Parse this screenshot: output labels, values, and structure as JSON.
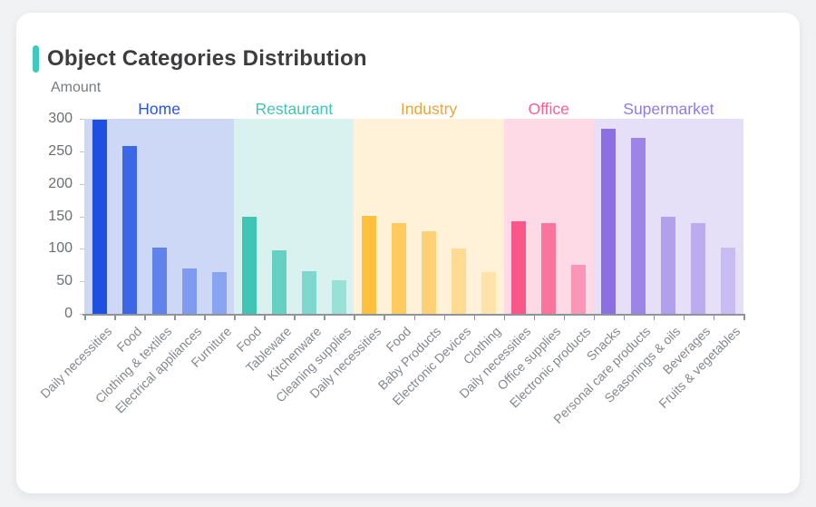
{
  "page": {
    "background": "#f0f2f4"
  },
  "card": {
    "title": "Object Categories Distribution",
    "accent_color": "#3ec9bd"
  },
  "chart_data": {
    "type": "bar",
    "title": "Object Categories Distribution",
    "xlabel": "",
    "ylabel": "Amount",
    "ylim": [
      0,
      300
    ],
    "yticks": [
      0,
      50,
      100,
      150,
      200,
      250,
      300
    ],
    "grid": false,
    "legend_position": "group-headers-top",
    "groups": [
      {
        "name": "Home",
        "label_color": "#2b53e3",
        "panel_color": "#cdd8f6",
        "bars": [
          {
            "label": "Daily necessities",
            "value": 299,
            "color": "#1e4fe0"
          },
          {
            "label": "Food",
            "value": 258,
            "color": "#3b66e6"
          },
          {
            "label": "Clothing & textiles",
            "value": 102,
            "color": "#5f83eb"
          },
          {
            "label": "Electrical appliances",
            "value": 70,
            "color": "#7e9bf0"
          },
          {
            "label": "Furniture",
            "value": 64,
            "color": "#8aa4f1"
          }
        ]
      },
      {
        "name": "Restaurant",
        "label_color": "#3fc5b5",
        "panel_color": "#d9f2ef",
        "bars": [
          {
            "label": "Food",
            "value": 149,
            "color": "#40c4b4"
          },
          {
            "label": "Tableware",
            "value": 97,
            "color": "#66d0c3"
          },
          {
            "label": "Kitchenware",
            "value": 66,
            "color": "#7fd8cd"
          },
          {
            "label": "Cleaning supplies",
            "value": 52,
            "color": "#99e0d7"
          }
        ]
      },
      {
        "name": "Industry",
        "label_color": "#eaa63c",
        "panel_color": "#fff2d8",
        "bars": [
          {
            "label": "Daily necessities",
            "value": 151,
            "color": "#ffc03d"
          },
          {
            "label": "Food",
            "value": 140,
            "color": "#ffcb5f"
          },
          {
            "label": "Baby Products",
            "value": 127,
            "color": "#ffd176"
          },
          {
            "label": "Electronic Devices",
            "value": 100,
            "color": "#ffdb93"
          },
          {
            "label": "Clothing",
            "value": 64,
            "color": "#ffe3ab"
          }
        ]
      },
      {
        "name": "Office",
        "label_color": "#fa5d92",
        "panel_color": "#fddae5",
        "bars": [
          {
            "label": "Daily necessities",
            "value": 142,
            "color": "#f9568a"
          },
          {
            "label": "Office supplies",
            "value": 139,
            "color": "#fa749e"
          },
          {
            "label": "Electronic products",
            "value": 75,
            "color": "#fc96b6"
          }
        ]
      },
      {
        "name": "Supermarket",
        "label_color": "#8f7ce6",
        "panel_color": "#e5e0f7",
        "bars": [
          {
            "label": "Snacks",
            "value": 285,
            "color": "#8c70e2"
          },
          {
            "label": "Personal care products",
            "value": 271,
            "color": "#9d85e7"
          },
          {
            "label": "Seasonings & oils",
            "value": 149,
            "color": "#b2a0ec"
          },
          {
            "label": "Beverages",
            "value": 140,
            "color": "#bcacef"
          },
          {
            "label": "Fruits & vegetables",
            "value": 102,
            "color": "#c9bcf2"
          }
        ]
      }
    ]
  }
}
